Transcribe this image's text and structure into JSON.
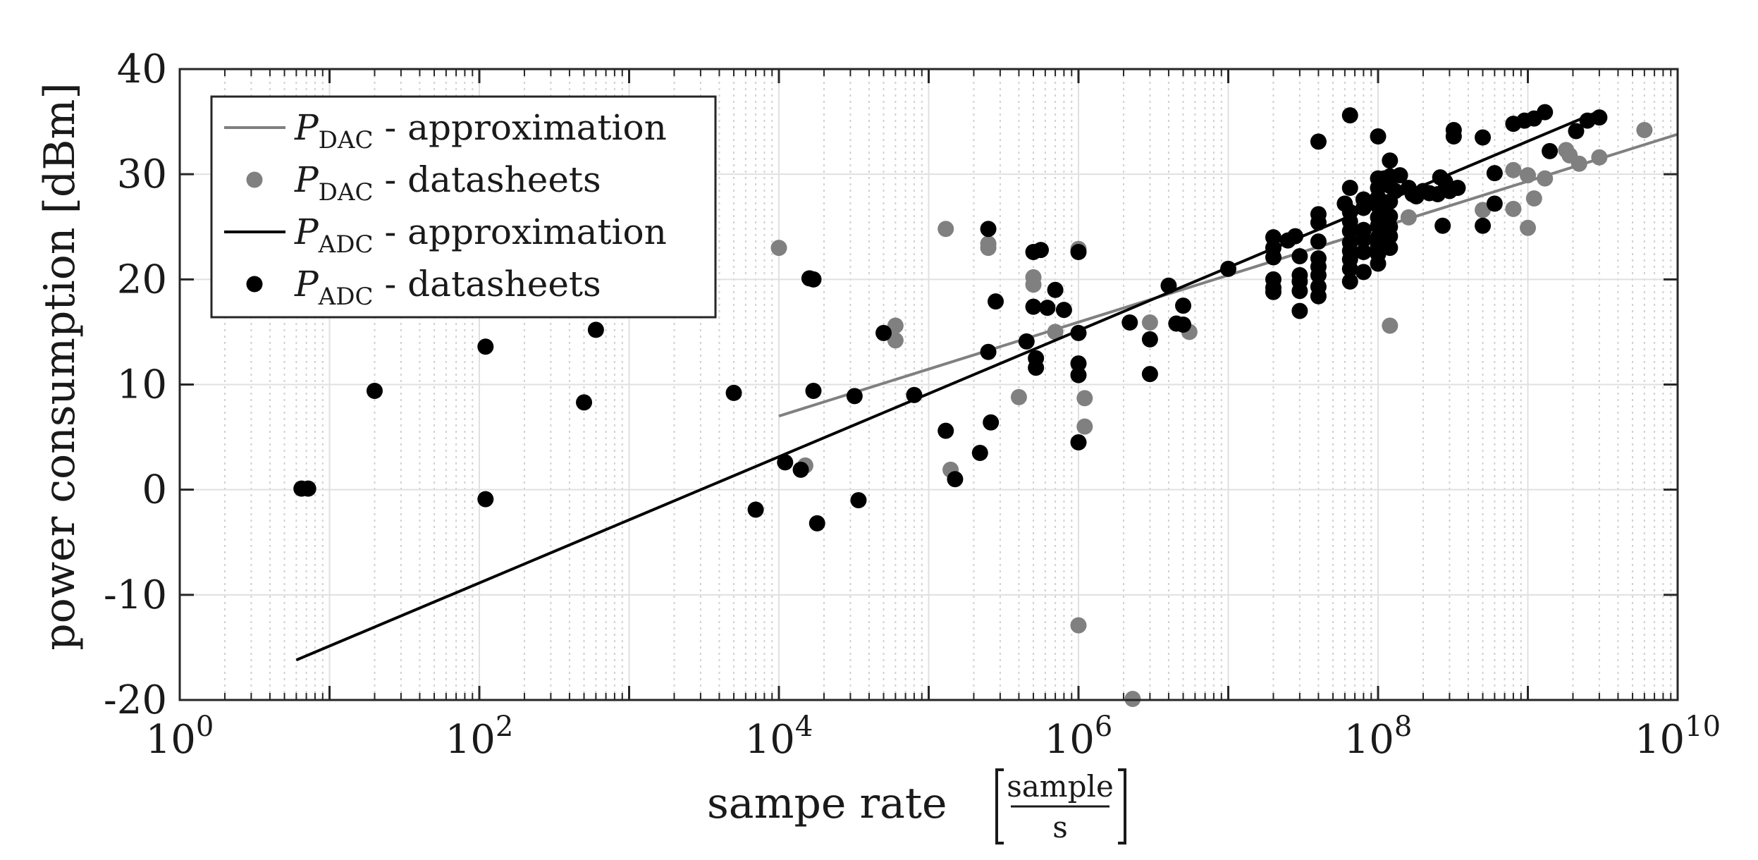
{
  "chart_data": {
    "type": "scatter",
    "title": "",
    "xlabel": "sampe rate",
    "xunit_num": "sample",
    "xunit_den": "s",
    "ylabel": "power consumption [dBm]",
    "xscale": "log",
    "xlim": [
      1,
      10000000000
    ],
    "ylim": [
      -20,
      40
    ],
    "grid": true,
    "legend_position": "top-left",
    "x_ticks": [
      {
        "value": 1,
        "base": "10",
        "exp": "0"
      },
      {
        "value": 100,
        "base": "10",
        "exp": "2"
      },
      {
        "value": 10000,
        "base": "10",
        "exp": "4"
      },
      {
        "value": 1000000,
        "base": "10",
        "exp": "6"
      },
      {
        "value": 100000000,
        "base": "10",
        "exp": "8"
      },
      {
        "value": 10000000000,
        "base": "10",
        "exp": "10"
      }
    ],
    "y_ticks": [
      {
        "value": 40,
        "label": "40"
      },
      {
        "value": 30,
        "label": "30"
      },
      {
        "value": 20,
        "label": "20"
      },
      {
        "value": 10,
        "label": "10"
      },
      {
        "value": 0,
        "label": "0"
      },
      {
        "value": -10,
        "label": "-10"
      },
      {
        "value": -20,
        "label": "-20"
      }
    ],
    "series": [
      {
        "name": "P_DAC - approximation",
        "symbol": "P",
        "subscript": "DAC",
        "text": " - approximation",
        "kind": "line",
        "color": "#808080",
        "points": [
          [
            10000,
            7.0
          ],
          [
            10000000000,
            33.8
          ]
        ]
      },
      {
        "name": "P_DAC - datasheets",
        "symbol": "P",
        "subscript": "DAC",
        "text": " - datasheets",
        "kind": "scatter",
        "color": "#808080",
        "points": [
          [
            10000,
            23.0
          ],
          [
            15000,
            2.3
          ],
          [
            60000,
            15.6
          ],
          [
            60000,
            14.2
          ],
          [
            130000,
            24.8
          ],
          [
            140000,
            1.9
          ],
          [
            250000,
            23.4
          ],
          [
            250000,
            23.0
          ],
          [
            400000,
            8.8
          ],
          [
            500000,
            20.2
          ],
          [
            500000,
            19.5
          ],
          [
            700000,
            15.0
          ],
          [
            1000000,
            22.9
          ],
          [
            1100000,
            8.7
          ],
          [
            1100000,
            6.0
          ],
          [
            1000000,
            -12.9
          ],
          [
            2300000,
            -19.9
          ],
          [
            3000000,
            15.9
          ],
          [
            5500000,
            15.0
          ],
          [
            120000000,
            15.6
          ],
          [
            160000000,
            25.9
          ],
          [
            500000000,
            26.6
          ],
          [
            800000000,
            26.7
          ],
          [
            800000000,
            30.4
          ],
          [
            1000000000,
            29.9
          ],
          [
            1000000000,
            24.9
          ],
          [
            1100000000,
            27.7
          ],
          [
            1300000000,
            29.6
          ],
          [
            1800000000,
            32.3
          ],
          [
            2200000000,
            31.0
          ],
          [
            3000000000,
            31.6
          ],
          [
            6000000000,
            34.2
          ],
          [
            1900000000,
            31.8
          ]
        ]
      },
      {
        "name": "P_ADC - approximation",
        "symbol": "P",
        "subscript": "ADC",
        "text": " - approximation",
        "kind": "line",
        "color": "#000000",
        "points": [
          [
            6,
            -16.2
          ],
          [
            3000000000,
            36.0
          ]
        ]
      },
      {
        "name": "P_ADC - datasheets",
        "symbol": "P",
        "subscript": "ADC",
        "text": " - datasheets",
        "kind": "scatter",
        "color": "#000000",
        "points": [
          [
            6.5,
            0.1
          ],
          [
            7.2,
            0.1
          ],
          [
            20,
            9.4
          ],
          [
            110,
            13.6
          ],
          [
            110,
            -0.9
          ],
          [
            500,
            8.3
          ],
          [
            600,
            15.2
          ],
          [
            5000,
            9.2
          ],
          [
            7000,
            -1.9
          ],
          [
            11000,
            2.6
          ],
          [
            14000,
            1.9
          ],
          [
            16000,
            20.1
          ],
          [
            17000,
            20.0
          ],
          [
            17000,
            9.4
          ],
          [
            18000,
            -3.2
          ],
          [
            32000,
            8.9
          ],
          [
            34000,
            -1.0
          ],
          [
            50000,
            14.9
          ],
          [
            80000,
            9.0
          ],
          [
            130000,
            5.6
          ],
          [
            150000,
            1.0
          ],
          [
            220000,
            3.5
          ],
          [
            250000,
            24.8
          ],
          [
            250000,
            13.1
          ],
          [
            260000,
            6.4
          ],
          [
            280000,
            17.9
          ],
          [
            450000,
            14.1
          ],
          [
            500000,
            22.6
          ],
          [
            500000,
            17.4
          ],
          [
            520000,
            12.5
          ],
          [
            520000,
            11.6
          ],
          [
            560000,
            22.8
          ],
          [
            620000,
            17.3
          ],
          [
            700000,
            19.0
          ],
          [
            800000,
            17.1
          ],
          [
            1000000,
            22.6
          ],
          [
            1000000,
            14.9
          ],
          [
            1000000,
            12.0
          ],
          [
            1000000,
            10.9
          ],
          [
            1000000,
            4.5
          ],
          [
            2200000,
            15.9
          ],
          [
            3000000,
            14.3
          ],
          [
            3000000,
            11.0
          ],
          [
            4000000,
            19.4
          ],
          [
            4500000,
            15.8
          ],
          [
            5000000,
            17.5
          ],
          [
            5000000,
            15.7
          ],
          [
            10000000,
            21.0
          ],
          [
            20000000,
            24.0
          ],
          [
            20000000,
            23.0
          ],
          [
            20000000,
            22.1
          ],
          [
            20000000,
            20.0
          ],
          [
            20000000,
            19.2
          ],
          [
            20000000,
            18.8
          ],
          [
            25000000,
            23.7
          ],
          [
            28000000,
            24.1
          ],
          [
            30000000,
            22.2
          ],
          [
            30000000,
            20.4
          ],
          [
            30000000,
            19.8
          ],
          [
            30000000,
            18.9
          ],
          [
            30000000,
            17.0
          ],
          [
            40000000,
            33.1
          ],
          [
            40000000,
            26.2
          ],
          [
            40000000,
            25.4
          ],
          [
            40000000,
            23.6
          ],
          [
            40000000,
            22.0
          ],
          [
            40000000,
            21.2
          ],
          [
            40000000,
            20.4
          ],
          [
            40000000,
            19.3
          ],
          [
            40000000,
            18.4
          ],
          [
            60000000,
            27.2
          ],
          [
            65000000,
            35.6
          ],
          [
            65000000,
            28.7
          ],
          [
            65000000,
            26.4
          ],
          [
            65000000,
            25.5
          ],
          [
            65000000,
            24.6
          ],
          [
            65000000,
            23.5
          ],
          [
            65000000,
            22.7
          ],
          [
            65000000,
            21.9
          ],
          [
            65000000,
            21.0
          ],
          [
            65000000,
            19.8
          ],
          [
            80000000,
            27.6
          ],
          [
            80000000,
            26.8
          ],
          [
            80000000,
            24.7
          ],
          [
            80000000,
            23.8
          ],
          [
            80000000,
            22.6
          ],
          [
            80000000,
            20.7
          ],
          [
            100000000,
            33.6
          ],
          [
            100000000,
            29.6
          ],
          [
            100000000,
            28.7
          ],
          [
            100000000,
            27.8
          ],
          [
            100000000,
            27.0
          ],
          [
            100000000,
            25.9
          ],
          [
            100000000,
            25.1
          ],
          [
            100000000,
            24.0
          ],
          [
            100000000,
            23.2
          ],
          [
            100000000,
            22.4
          ],
          [
            100000000,
            21.5
          ],
          [
            110000000,
            29.6
          ],
          [
            110000000,
            27.0
          ],
          [
            110000000,
            24.2
          ],
          [
            120000000,
            31.3
          ],
          [
            120000000,
            29.8
          ],
          [
            120000000,
            28.9
          ],
          [
            120000000,
            27.4
          ],
          [
            120000000,
            26.0
          ],
          [
            120000000,
            25.0
          ],
          [
            120000000,
            24.1
          ],
          [
            120000000,
            23.0
          ],
          [
            130000000,
            28.4
          ],
          [
            140000000,
            29.9
          ],
          [
            160000000,
            28.7
          ],
          [
            170000000,
            28.1
          ],
          [
            180000000,
            27.9
          ],
          [
            200000000,
            28.4
          ],
          [
            220000000,
            28.2
          ],
          [
            250000000,
            28.1
          ],
          [
            260000000,
            29.7
          ],
          [
            270000000,
            25.1
          ],
          [
            280000000,
            29.3
          ],
          [
            300000000,
            28.4
          ],
          [
            320000000,
            34.2
          ],
          [
            320000000,
            33.6
          ],
          [
            340000000,
            28.7
          ],
          [
            500000000,
            33.5
          ],
          [
            500000000,
            25.1
          ],
          [
            600000000,
            30.1
          ],
          [
            600000000,
            27.2
          ],
          [
            800000000,
            34.8
          ],
          [
            950000000,
            35.1
          ],
          [
            1100000000,
            35.3
          ],
          [
            1300000000,
            35.9
          ],
          [
            1400000000,
            32.2
          ],
          [
            2100000000,
            34.1
          ],
          [
            2500000000,
            35.1
          ],
          [
            3000000000,
            35.4
          ]
        ]
      }
    ]
  }
}
